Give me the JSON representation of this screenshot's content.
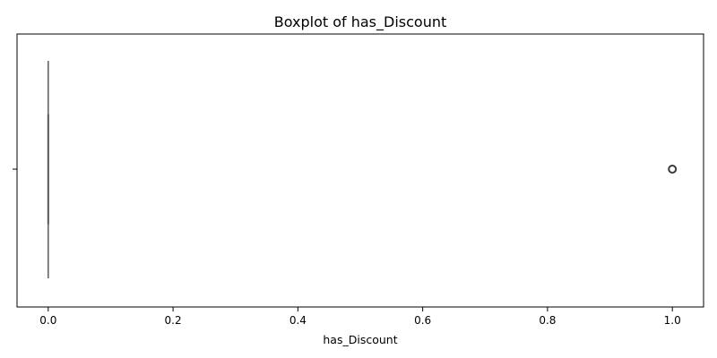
{
  "chart_data": {
    "type": "boxplot",
    "title": "Boxplot of has_Discount",
    "xlabel": "has_Discount",
    "ylabel": "",
    "xlim": [
      -0.05,
      1.05
    ],
    "x_ticks": [
      0.0,
      0.2,
      0.4,
      0.6,
      0.8,
      1.0
    ],
    "x_tick_labels": [
      "0.0",
      "0.2",
      "0.4",
      "0.6",
      "0.8",
      "1.0"
    ],
    "series": [
      {
        "min": 0,
        "q1": 0,
        "median": 0,
        "q3": 0,
        "max": 0,
        "outliers": [
          1
        ]
      }
    ],
    "grid": false,
    "colors": {
      "box": "#5a5a5a",
      "outlier": "#3a3a3a"
    }
  }
}
